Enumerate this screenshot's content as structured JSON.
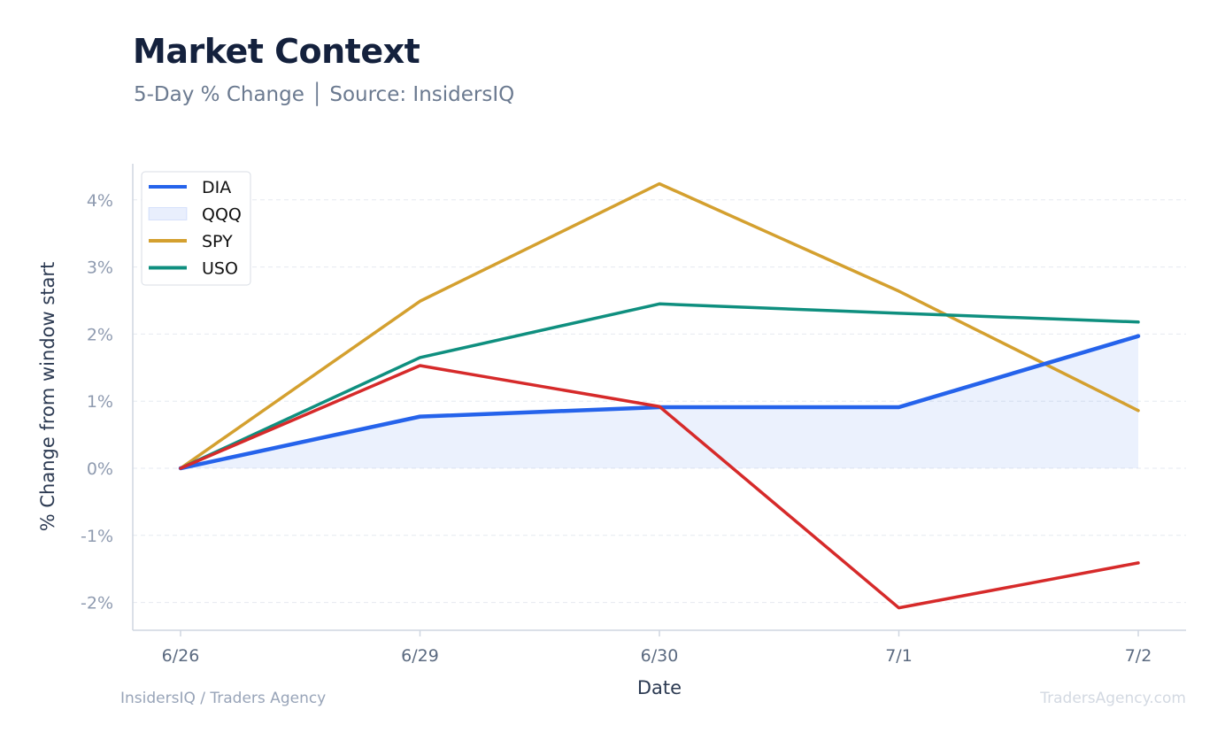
{
  "header": {
    "title": "Market Context",
    "subtitle": "5-Day % Change │ Source: InsidersIQ"
  },
  "footer": {
    "left": "InsidersIQ / Traders Agency",
    "right": "TradersAgency.com"
  },
  "chart_data": {
    "type": "line",
    "title": "Market Context",
    "subtitle": "5-Day % Change │ Source: InsidersIQ",
    "xlabel": "Date",
    "ylabel": "% Change from window start",
    "x": [
      "6/26",
      "6/29",
      "6/30",
      "7/1",
      "7/2"
    ],
    "yticks": [
      -2,
      -1,
      0,
      1,
      2,
      3,
      4
    ],
    "ytick_labels": [
      "-2%",
      "-1%",
      "0%",
      "1%",
      "2%",
      "3%",
      "4%"
    ],
    "ylim": [
      -2.4,
      4.6
    ],
    "grid": true,
    "legend_position": "top-left",
    "legend": [
      {
        "name": "DIA",
        "kind": "line",
        "color": "#2563eb"
      },
      {
        "name": "QQQ",
        "kind": "area",
        "color": "#2563eb"
      },
      {
        "name": "SPY",
        "kind": "line",
        "color": "#d4a02f"
      },
      {
        "name": "USO",
        "kind": "line",
        "color": "#0f8f7f"
      }
    ],
    "series": [
      {
        "name": "DIA",
        "color": "#2563eb",
        "values": [
          0,
          0.77,
          0.91,
          0.91,
          1.97
        ],
        "fill": true
      },
      {
        "name": "SPY",
        "color": "#d4a02f",
        "values": [
          0,
          2.49,
          4.24,
          2.64,
          0.86
        ]
      },
      {
        "name": "USO",
        "color": "#0f8f7f",
        "values": [
          0,
          1.65,
          2.45,
          2.31,
          2.18
        ]
      },
      {
        "color": "#d62a2a",
        "values": [
          0,
          1.53,
          0.92,
          -2.08,
          -1.41
        ]
      }
    ]
  }
}
